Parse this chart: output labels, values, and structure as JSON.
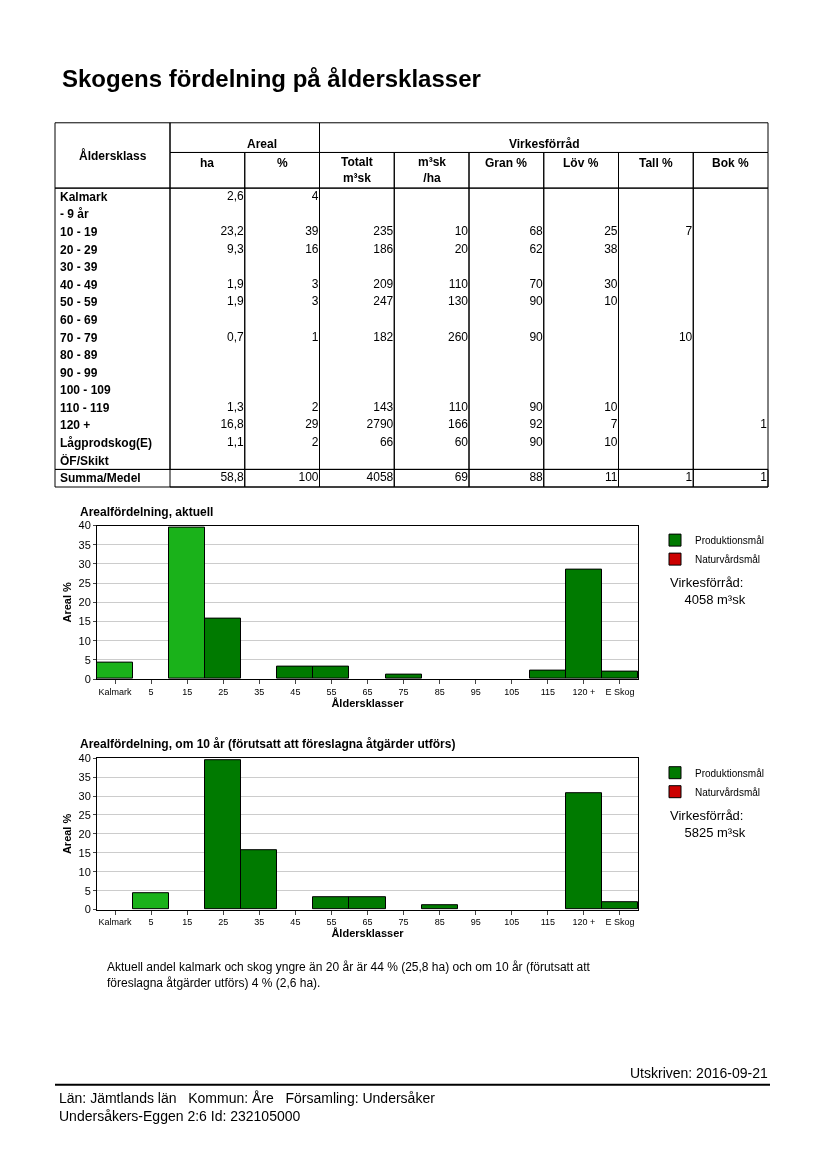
{
  "chart_data": [
    {
      "type": "heatmap",
      "title": "Skogens fördelning på åldersklasser",
      "xlabel": "Åldersklass",
      "categories": [
        "ha",
        "%",
        "Totalt\nm³sk",
        "m³sk\n/ha",
        "Gran %",
        "Löv %",
        "Tall %",
        "Bok %"
      ],
      "y_categories": [
        "Kalmark",
        "- 9 år",
        "10 - 19",
        "20 - 29",
        "30 - 39",
        "40 - 49",
        "50 - 59",
        "60 - 69",
        "70 - 79",
        "80 - 89",
        "90 - 99",
        "100 - 109",
        "110 - 119",
        "120 +",
        "Lågprodskog(E)",
        "ÖF/Skikt",
        "Summa/Medel"
      ],
      "cells": [
        [
          2.6,
          4,
          null,
          null,
          null,
          null,
          null,
          null
        ],
        [
          null,
          null,
          null,
          null,
          null,
          null,
          null,
          null
        ],
        [
          23.2,
          39,
          235,
          10,
          68,
          25,
          7,
          null
        ],
        [
          9.3,
          16,
          186,
          20,
          62,
          38,
          null,
          null
        ],
        [
          null,
          null,
          null,
          null,
          null,
          null,
          null,
          null
        ],
        [
          1.9,
          3,
          209,
          110,
          70,
          30,
          null,
          null
        ],
        [
          1.9,
          3,
          247,
          130,
          90,
          10,
          null,
          null
        ],
        [
          null,
          null,
          null,
          null,
          null,
          null,
          null,
          null
        ],
        [
          0.7,
          1,
          182,
          260,
          90,
          null,
          10,
          null
        ],
        [
          null,
          null,
          null,
          null,
          null,
          null,
          null,
          null
        ],
        [
          null,
          null,
          null,
          null,
          null,
          null,
          null,
          null
        ],
        [
          null,
          null,
          null,
          null,
          null,
          null,
          null,
          null
        ],
        [
          1.3,
          2,
          143,
          110,
          90,
          10,
          null,
          null
        ],
        [
          16.8,
          29,
          2790,
          166,
          92,
          7,
          null,
          1
        ],
        [
          1.1,
          2,
          66,
          60,
          90,
          10,
          null,
          null
        ],
        [
          null,
          null,
          null,
          null,
          null,
          null,
          null,
          null
        ],
        [
          58.8,
          100,
          4058,
          69,
          88,
          11,
          1,
          1
        ]
      ],
      "cell_labels": [
        [
          "2,6",
          "4",
          null,
          null,
          null,
          null,
          null,
          null
        ],
        [
          null,
          null,
          null,
          null,
          null,
          null,
          null,
          null
        ],
        [
          "23,2",
          "39",
          "235",
          "10",
          "68",
          "25",
          "7",
          null
        ],
        [
          "9,3",
          "16",
          "186",
          "20",
          "62",
          "38",
          null,
          null
        ],
        [
          null,
          null,
          null,
          null,
          null,
          null,
          null,
          null
        ],
        [
          "1,9",
          "3",
          "209",
          "110",
          "70",
          "30",
          null,
          null
        ],
        [
          "1,9",
          "3",
          "247",
          "130",
          "90",
          "10",
          null,
          null
        ],
        [
          null,
          null,
          null,
          null,
          null,
          null,
          null,
          null
        ],
        [
          "0,7",
          "1",
          "182",
          "260",
          "90",
          null,
          "10",
          null
        ],
        [
          null,
          null,
          null,
          null,
          null,
          null,
          null,
          null
        ],
        [
          null,
          null,
          null,
          null,
          null,
          null,
          null,
          null
        ],
        [
          null,
          null,
          null,
          null,
          null,
          null,
          null,
          null
        ],
        [
          "1,3",
          "2",
          "143",
          "110",
          "90",
          "10",
          null,
          null
        ],
        [
          "16,8",
          "29",
          "2790",
          "166",
          "92",
          "7",
          null,
          "1"
        ],
        [
          "1,1",
          "2",
          "66",
          "60",
          "90",
          "10",
          null,
          null
        ],
        [
          null,
          null,
          null,
          null,
          null,
          null,
          null,
          null
        ],
        [
          "58,8",
          "100",
          "4058",
          "69",
          "88",
          "11",
          "1",
          "1"
        ]
      ],
      "annotations": [
        "Areal",
        "Virkesförråd"
      ],
      "data_labels": true
    },
    {
      "type": "bar",
      "title": "Arealfördelning, aktuell",
      "xlabel": "Åldersklasser",
      "ylabel": "Areal %",
      "categories": [
        "Kalmark",
        "5",
        "15",
        "25",
        "35",
        "45",
        "55",
        "65",
        "75",
        "85",
        "95",
        "105",
        "115",
        "120 +",
        "E Skog"
      ],
      "series": [
        {
          "name": "Produktionsmål",
          "color": "#007a00",
          "colors": [
            "#1ab21a",
            "#007a00",
            "#1ab21a",
            "#007a00",
            "#007a00",
            "#007a00",
            "#007a00",
            "#007a00",
            "#007a00",
            "#007a00",
            "#007a00",
            "#007a00",
            "#007a00",
            "#007a00",
            "#007a00"
          ],
          "values": [
            4.4,
            null,
            39.5,
            15.8,
            null,
            3.2,
            3.2,
            null,
            1.2,
            null,
            null,
            null,
            2.2,
            28.6,
            1.9
          ]
        },
        {
          "name": "Naturvårdsmål",
          "color": "#cc0000",
          "values": [
            null,
            null,
            null,
            null,
            null,
            null,
            null,
            null,
            null,
            null,
            null,
            null,
            null,
            null,
            null
          ]
        }
      ],
      "stacked": true,
      "ylim": [
        0,
        40
      ],
      "yticks": [
        0,
        5,
        10,
        15,
        20,
        25,
        30,
        35,
        40
      ],
      "grid": "y",
      "legend": "right",
      "annotations": [
        "Virkesförråd:\n    4058 m³sk"
      ]
    },
    {
      "type": "bar",
      "title": "Arealfördelning, om 10 år (förutsatt att föreslagna åtgärder utförs)",
      "xlabel": "Åldersklasser",
      "ylabel": "Areal %",
      "categories": [
        "Kalmark",
        "5",
        "15",
        "25",
        "35",
        "45",
        "55",
        "65",
        "75",
        "85",
        "95",
        "105",
        "115",
        "120 +",
        "E Skog"
      ],
      "series": [
        {
          "name": "Produktionsmål",
          "color": "#007a00",
          "colors": [
            "#007a00",
            "#1ab21a",
            "#007a00",
            "#007a00",
            "#007a00",
            "#007a00",
            "#007a00",
            "#007a00",
            "#007a00",
            "#007a00",
            "#007a00",
            "#007a00",
            "#007a00",
            "#007a00",
            "#007a00"
          ],
          "values": [
            null,
            4.4,
            null,
            39.5,
            15.8,
            null,
            3.2,
            3.2,
            null,
            1.2,
            null,
            null,
            null,
            30.8,
            1.9
          ]
        },
        {
          "name": "Naturvårdsmål",
          "color": "#cc0000",
          "values": [
            null,
            null,
            null,
            null,
            null,
            null,
            null,
            null,
            null,
            null,
            null,
            null,
            null,
            null,
            null
          ]
        }
      ],
      "stacked": true,
      "ylim": [
        0,
        40
      ],
      "yticks": [
        0,
        5,
        10,
        15,
        20,
        25,
        30,
        35,
        40
      ],
      "grid": "y",
      "legend": "right",
      "annotations": [
        "Virkesförråd:\n    5825 m³sk",
        "Aktuell andel kalmark och skog yngre än 20 år är 44 % (25,8 ha) och om 10 år (förutsatt att\nföreslagna åtgärder utförs) 4 % (2,6 ha).",
        "Utskriven: 2016-09-21",
        "Län: Jämtlands län   Kommun: Åre   Församling: Undersåker\nUndersåkers-Eggen 2:6 Id: 232105000"
      ]
    }
  ]
}
